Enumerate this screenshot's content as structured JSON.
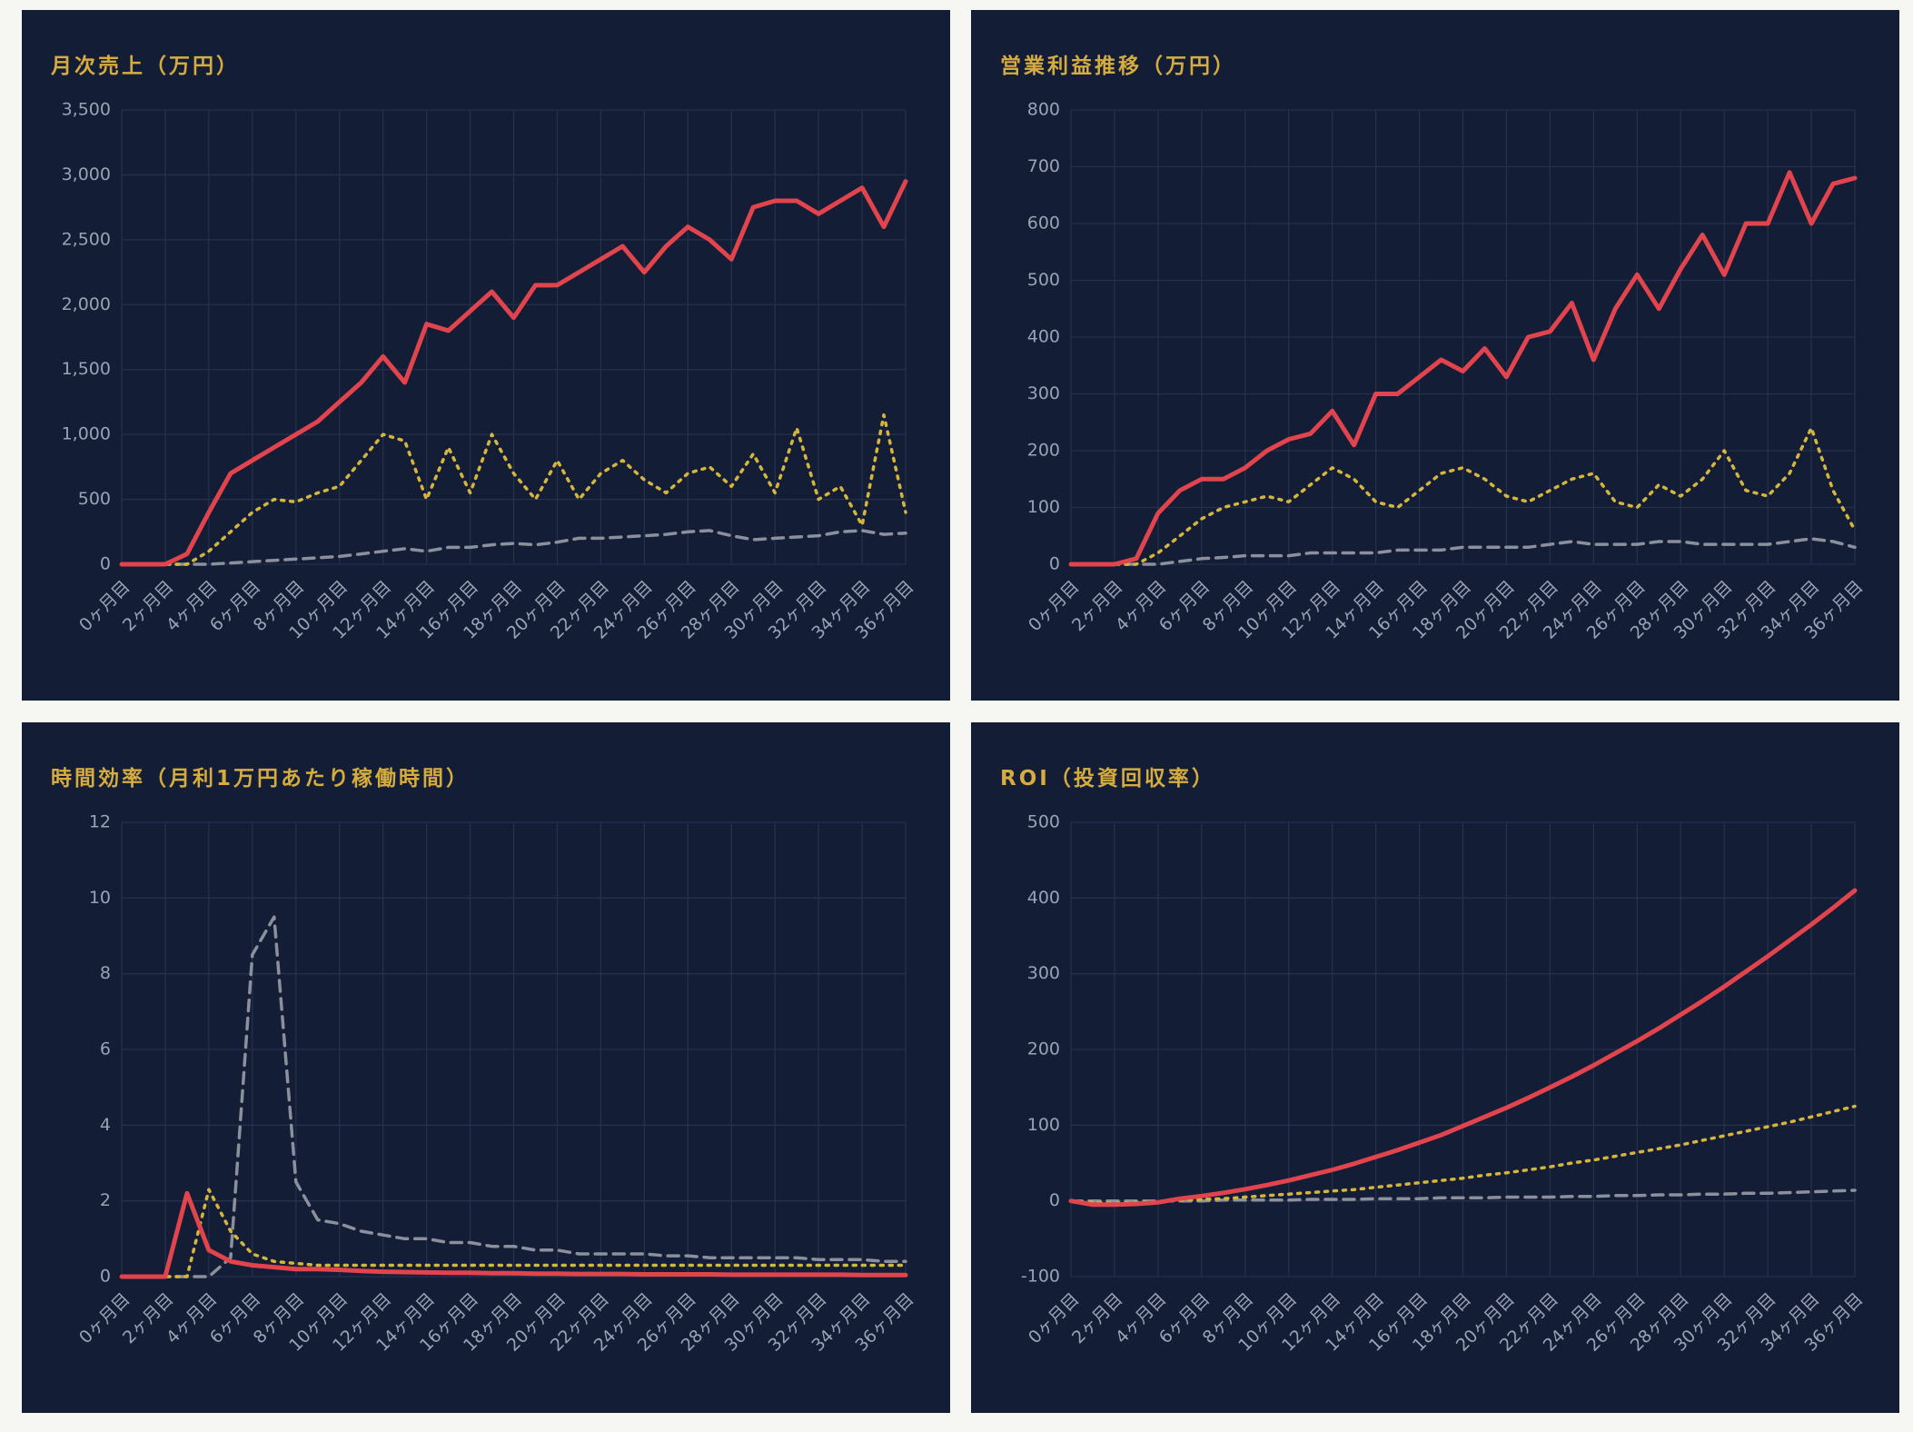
{
  "chart_data": [
    {
      "type": "line",
      "title": "月次売上（万円）",
      "categories": [
        "0ヶ月目",
        null,
        "2ヶ月目",
        null,
        "4ヶ月目",
        null,
        "6ヶ月目",
        null,
        "8ヶ月目",
        null,
        "10ヶ月目",
        null,
        "12ヶ月目",
        null,
        "14ヶ月目",
        null,
        "16ヶ月目",
        null,
        "18ヶ月目",
        null,
        "20ヶ月目",
        null,
        "22ヶ月目",
        null,
        "24ヶ月目",
        null,
        "26ヶ月目",
        null,
        "28ヶ月目",
        null,
        "30ヶ月目",
        null,
        "32ヶ月目",
        null,
        "34ヶ月目",
        null,
        "36ヶ月目"
      ],
      "ylim": [
        0,
        3500
      ],
      "yticks": [
        0,
        500,
        {
          "value": 1000,
          "label": "1,000"
        },
        {
          "value": 1500,
          "label": "1,500"
        },
        {
          "value": 2000,
          "label": "2,000"
        },
        {
          "value": 2500,
          "label": "2,500"
        },
        {
          "value": 3000,
          "label": "3,000"
        },
        {
          "value": 3500,
          "label": "3,500"
        }
      ],
      "grid": true,
      "series": [
        {
          "color": "#8b909c",
          "dash": "dashed",
          "values": [
            0,
            0,
            0,
            0,
            0,
            10,
            20,
            30,
            40,
            50,
            60,
            80,
            100,
            120,
            100,
            130,
            130,
            150,
            160,
            150,
            170,
            200,
            200,
            210,
            220,
            230,
            250,
            260,
            220,
            190,
            200,
            210,
            220,
            250,
            260,
            230,
            240
          ]
        },
        {
          "color": "#d5b53c",
          "dash": "dotted",
          "values": [
            0,
            0,
            0,
            0,
            100,
            250,
            400,
            500,
            480,
            550,
            600,
            800,
            1000,
            950,
            500,
            900,
            550,
            1000,
            700,
            500,
            800,
            500,
            700,
            800,
            650,
            550,
            700,
            750,
            600,
            850,
            550,
            1050,
            500,
            600,
            300,
            1150,
            400
          ]
        },
        {
          "color": "#e2444d",
          "dash": "solid",
          "values": [
            0,
            0,
            0,
            80,
            400,
            700,
            800,
            900,
            1000,
            1100,
            1250,
            1400,
            1600,
            1400,
            1850,
            1800,
            1950,
            2100,
            1900,
            2150,
            2150,
            2250,
            2350,
            2450,
            2250,
            2450,
            2600,
            2500,
            2350,
            2750,
            2800,
            2800,
            2700,
            2800,
            2900,
            2600,
            2950
          ]
        }
      ]
    },
    {
      "type": "line",
      "title": "営業利益推移（万円）",
      "categories": [
        "0ヶ月目",
        null,
        "2ヶ月目",
        null,
        "4ヶ月目",
        null,
        "6ヶ月目",
        null,
        "8ヶ月目",
        null,
        "10ヶ月目",
        null,
        "12ヶ月目",
        null,
        "14ヶ月目",
        null,
        "16ヶ月目",
        null,
        "18ヶ月目",
        null,
        "20ヶ月目",
        null,
        "22ヶ月目",
        null,
        "24ヶ月目",
        null,
        "26ヶ月目",
        null,
        "28ヶ月目",
        null,
        "30ヶ月目",
        null,
        "32ヶ月目",
        null,
        "34ヶ月目",
        null,
        "36ヶ月目"
      ],
      "ylim": [
        0,
        800
      ],
      "yticks": [
        0,
        100,
        200,
        300,
        400,
        500,
        600,
        700,
        800
      ],
      "grid": true,
      "series": [
        {
          "color": "#8b909c",
          "dash": "dashed",
          "values": [
            0,
            0,
            0,
            0,
            0,
            5,
            10,
            12,
            15,
            15,
            15,
            20,
            20,
            20,
            20,
            25,
            25,
            25,
            30,
            30,
            30,
            30,
            35,
            40,
            35,
            35,
            35,
            40,
            40,
            35,
            35,
            35,
            35,
            40,
            45,
            40,
            30
          ]
        },
        {
          "color": "#d5b53c",
          "dash": "dotted",
          "values": [
            0,
            0,
            0,
            0,
            20,
            50,
            80,
            100,
            110,
            120,
            110,
            140,
            170,
            150,
            110,
            100,
            130,
            160,
            170,
            150,
            120,
            110,
            130,
            150,
            160,
            110,
            100,
            140,
            120,
            150,
            200,
            130,
            120,
            160,
            240,
            130,
            60
          ]
        },
        {
          "color": "#e2444d",
          "dash": "solid",
          "values": [
            0,
            0,
            0,
            10,
            90,
            130,
            150,
            150,
            170,
            200,
            220,
            230,
            270,
            210,
            300,
            300,
            330,
            360,
            340,
            380,
            330,
            400,
            410,
            460,
            360,
            450,
            510,
            450,
            520,
            580,
            510,
            600,
            600,
            690,
            600,
            670,
            680
          ]
        }
      ]
    },
    {
      "type": "line",
      "title": "時間効率（月利1万円あたり稼働時間）",
      "categories": [
        "0ヶ月目",
        null,
        "2ヶ月目",
        null,
        "4ヶ月目",
        null,
        "6ヶ月目",
        null,
        "8ヶ月目",
        null,
        "10ヶ月目",
        null,
        "12ヶ月目",
        null,
        "14ヶ月目",
        null,
        "16ヶ月目",
        null,
        "18ヶ月目",
        null,
        "20ヶ月目",
        null,
        "22ヶ月目",
        null,
        "24ヶ月目",
        null,
        "26ヶ月目",
        null,
        "28ヶ月目",
        null,
        "30ヶ月目",
        null,
        "32ヶ月目",
        null,
        "34ヶ月目",
        null,
        "36ヶ月目"
      ],
      "ylim": [
        0,
        12
      ],
      "yticks": [
        0,
        2,
        4,
        6,
        8,
        10,
        12
      ],
      "grid": true,
      "series": [
        {
          "color": "#8b909c",
          "dash": "dashed",
          "values": [
            0,
            0,
            0,
            0,
            0,
            0.5,
            8.5,
            9.5,
            2.5,
            1.5,
            1.4,
            1.2,
            1.1,
            1.0,
            1.0,
            0.9,
            0.9,
            0.8,
            0.8,
            0.7,
            0.7,
            0.6,
            0.6,
            0.6,
            0.6,
            0.55,
            0.55,
            0.5,
            0.5,
            0.5,
            0.5,
            0.5,
            0.45,
            0.45,
            0.45,
            0.4,
            0.4
          ]
        },
        {
          "color": "#d5b53c",
          "dash": "dotted",
          "values": [
            0,
            0,
            0,
            0,
            2.3,
            1.2,
            0.6,
            0.4,
            0.35,
            0.3,
            0.3,
            0.3,
            0.3,
            0.3,
            0.3,
            0.3,
            0.3,
            0.3,
            0.3,
            0.3,
            0.3,
            0.3,
            0.3,
            0.3,
            0.3,
            0.3,
            0.3,
            0.3,
            0.3,
            0.3,
            0.3,
            0.3,
            0.3,
            0.3,
            0.3,
            0.3,
            0.3
          ]
        },
        {
          "color": "#e2444d",
          "dash": "solid",
          "values": [
            0,
            0,
            0,
            2.2,
            0.7,
            0.4,
            0.3,
            0.25,
            0.2,
            0.2,
            0.18,
            0.15,
            0.13,
            0.12,
            0.11,
            0.1,
            0.1,
            0.09,
            0.09,
            0.08,
            0.08,
            0.07,
            0.07,
            0.07,
            0.06,
            0.06,
            0.06,
            0.06,
            0.05,
            0.05,
            0.05,
            0.05,
            0.05,
            0.05,
            0.04,
            0.04,
            0.04
          ]
        }
      ]
    },
    {
      "type": "line",
      "title": "ROI（投資回収率）",
      "categories": [
        "0ヶ月目",
        null,
        "2ヶ月目",
        null,
        "4ヶ月目",
        null,
        "6ヶ月目",
        null,
        "8ヶ月目",
        null,
        "10ヶ月目",
        null,
        "12ヶ月目",
        null,
        "14ヶ月目",
        null,
        "16ヶ月目",
        null,
        "18ヶ月目",
        null,
        "20ヶ月目",
        null,
        "22ヶ月目",
        null,
        "24ヶ月目",
        null,
        "26ヶ月目",
        null,
        "28ヶ月目",
        null,
        "30ヶ月目",
        null,
        "32ヶ月目",
        null,
        "34ヶ月目",
        null,
        "36ヶ月目"
      ],
      "ylim": [
        -100,
        500
      ],
      "yticks": [
        -100,
        0,
        100,
        200,
        300,
        400,
        500
      ],
      "grid": true,
      "series": [
        {
          "color": "#8b909c",
          "dash": "dashed",
          "values": [
            0,
            0,
            0,
            0,
            0,
            0,
            0,
            1,
            1,
            1,
            1,
            2,
            2,
            2,
            3,
            3,
            3,
            4,
            4,
            4,
            5,
            5,
            5,
            6,
            6,
            7,
            7,
            8,
            8,
            9,
            9,
            10,
            10,
            11,
            12,
            13,
            14
          ]
        },
        {
          "color": "#d5b53c",
          "dash": "dotted",
          "values": [
            0,
            -2,
            -3,
            -2,
            -1,
            1,
            2,
            3,
            5,
            7,
            9,
            11,
            13,
            15,
            18,
            21,
            24,
            27,
            30,
            34,
            37,
            41,
            45,
            50,
            54,
            59,
            64,
            69,
            74,
            80,
            86,
            92,
            98,
            104,
            111,
            118,
            125
          ]
        },
        {
          "color": "#e2444d",
          "dash": "solid",
          "values": [
            0,
            -5,
            -5,
            -4,
            -2,
            3,
            6.5,
            10.7,
            15.5,
            21,
            27,
            34,
            41,
            49,
            58,
            67,
            77,
            87,
            99,
            111,
            123,
            136,
            150,
            164,
            179,
            195,
            211,
            228,
            246,
            264,
            283,
            303,
            323,
            344,
            365,
            387,
            410
          ]
        }
      ]
    }
  ]
}
